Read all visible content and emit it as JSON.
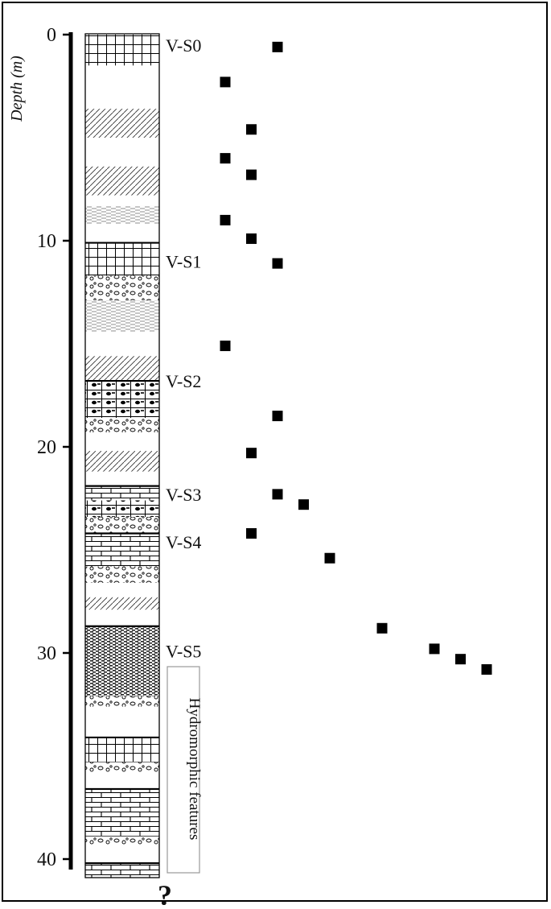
{
  "chart_data": {
    "type": "scatter",
    "ylabel": "Depth (m)",
    "xlabel": "",
    "title": "",
    "ylim": [
      0,
      40
    ],
    "y_inverted": true,
    "y_ticks": [
      0,
      10,
      20,
      30,
      40
    ],
    "column_bottom_mark": "?",
    "side_note": "Hydromorphic features",
    "units": [
      {
        "label": "V-S0",
        "depth": 0.5
      },
      {
        "label": "V-S1",
        "depth": 11.0
      },
      {
        "label": "V-S2",
        "depth": 16.8
      },
      {
        "label": "V-S3",
        "depth": 22.3
      },
      {
        "label": "V-S4",
        "depth": 24.6
      },
      {
        "label": "V-S5",
        "depth": 29.9
      }
    ],
    "series": [
      {
        "points": [
          {
            "x": 3,
            "y": 0.6
          },
          {
            "x": 1,
            "y": 2.3
          },
          {
            "x": 2,
            "y": 4.6
          },
          {
            "x": 1,
            "y": 6.0
          },
          {
            "x": 2,
            "y": 6.8
          },
          {
            "x": 1,
            "y": 9.0
          },
          {
            "x": 2,
            "y": 9.9
          },
          {
            "x": 3,
            "y": 11.1
          },
          {
            "x": 1,
            "y": 15.1
          },
          {
            "x": 3,
            "y": 18.5
          },
          {
            "x": 2,
            "y": 20.3
          },
          {
            "x": 3,
            "y": 22.3
          },
          {
            "x": 4,
            "y": 22.8
          },
          {
            "x": 2,
            "y": 24.2
          },
          {
            "x": 5,
            "y": 25.4
          },
          {
            "x": 7,
            "y": 28.8
          },
          {
            "x": 9,
            "y": 29.8
          },
          {
            "x": 10,
            "y": 30.3
          },
          {
            "x": 11,
            "y": 30.8
          }
        ]
      }
    ],
    "grid": false,
    "legend": "none"
  }
}
